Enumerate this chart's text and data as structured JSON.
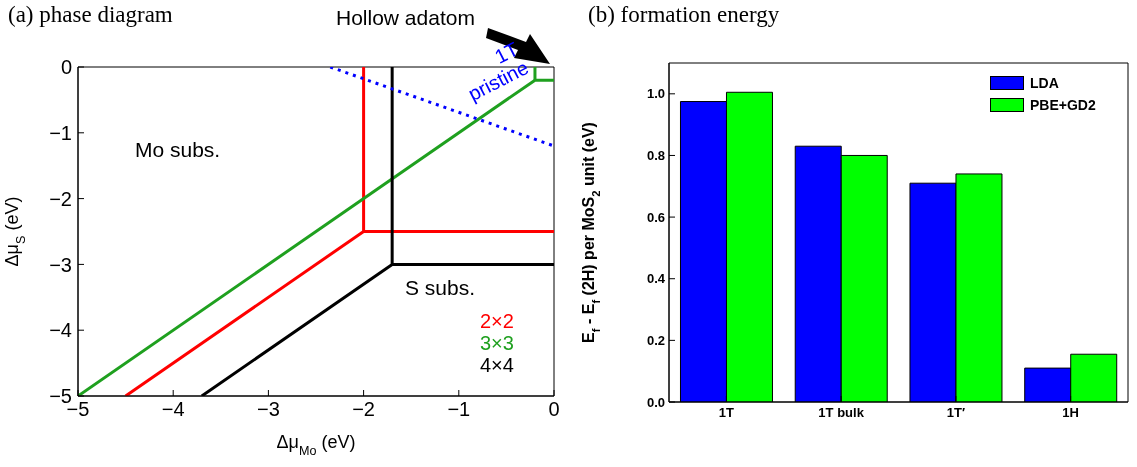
{
  "chart_data": [
    {
      "type": "line",
      "title": "(a) phase diagram",
      "xlabel": "Δμ$_{Mo}$ (eV)",
      "ylabel": "Δμ$_{S}$ (eV)",
      "xlim": [
        -5,
        0
      ],
      "ylim": [
        -5,
        0
      ],
      "xticks": [
        {
          "value": -5,
          "label": "−5"
        },
        {
          "value": -4,
          "label": "−4"
        },
        {
          "value": -3,
          "label": "−3"
        },
        {
          "value": -2,
          "label": "−2"
        },
        {
          "value": -1,
          "label": "−1"
        },
        0
      ],
      "yticks": [
        {
          "value": -5,
          "label": "−5"
        },
        {
          "value": -4,
          "label": "−4"
        },
        {
          "value": -3,
          "label": "−3"
        },
        {
          "value": -2,
          "label": "−2"
        },
        {
          "value": -1,
          "label": "−1"
        },
        0
      ],
      "marker": "none",
      "line_style": "solid",
      "legend": "bottom right",
      "series": [
        {
          "name": "2×2",
          "color": "#ff0000",
          "x": [
            -4.5,
            -2,
            -2
          ],
          "values": [
            -5,
            -2.5,
            0
          ]
        },
        {
          "color": "#ff0000",
          "x": [
            -2,
            0
          ],
          "values": [
            -2.5,
            -2.5
          ]
        },
        {
          "name": "3×3",
          "color": "#1fa01f",
          "x": [
            -5,
            -0.2,
            0
          ],
          "values": [
            -5,
            -0.2,
            -0.2
          ]
        },
        {
          "color": "#1fa01f",
          "x": [
            -0.2,
            -0.2
          ],
          "values": [
            -0.2,
            0
          ]
        },
        {
          "name": "4×4",
          "color": "#000000",
          "x": [
            -3.7,
            -1.7,
            -1.7
          ],
          "values": [
            -5,
            -3,
            0
          ]
        },
        {
          "color": "#000000",
          "x": [
            -1.7,
            0
          ],
          "values": [
            -3,
            -3
          ]
        },
        {
          "color": "#0000ff",
          "line_style": "dotted",
          "x": [
            -2.35,
            0
          ],
          "values": [
            0,
            -1.2
          ]
        }
      ],
      "annotations": [
        "Mo subs.",
        "S subs.",
        "Hollow adatom",
        {
          "text": "1T pristine",
          "x": -0.5,
          "y": -0.45
        }
      ]
    },
    {
      "type": "bar",
      "title": "(b) formation energy",
      "ylabel": "E$_{f}$ - E$_{f}$ (2H) per MoS$_{2}$ unit (eV)",
      "categories": [
        "1T",
        "1T bulk",
        "1T′",
        "1H"
      ],
      "ylim": [
        0,
        1.1
      ],
      "yticks": [
        {
          "value": 0,
          "label": "0.0"
        },
        0.2,
        0.4,
        0.6,
        0.8,
        {
          "value": 1,
          "label": "1.0"
        }
      ],
      "legend": "top right",
      "series": [
        {
          "name": "LDA",
          "color": "#0000ff",
          "values": [
            0.975,
            0.83,
            0.71,
            0.11
          ]
        },
        {
          "name": "PBE+GD2",
          "color": "#00ff00",
          "values": [
            1.005,
            0.8,
            0.74,
            0.155
          ]
        }
      ]
    }
  ]
}
